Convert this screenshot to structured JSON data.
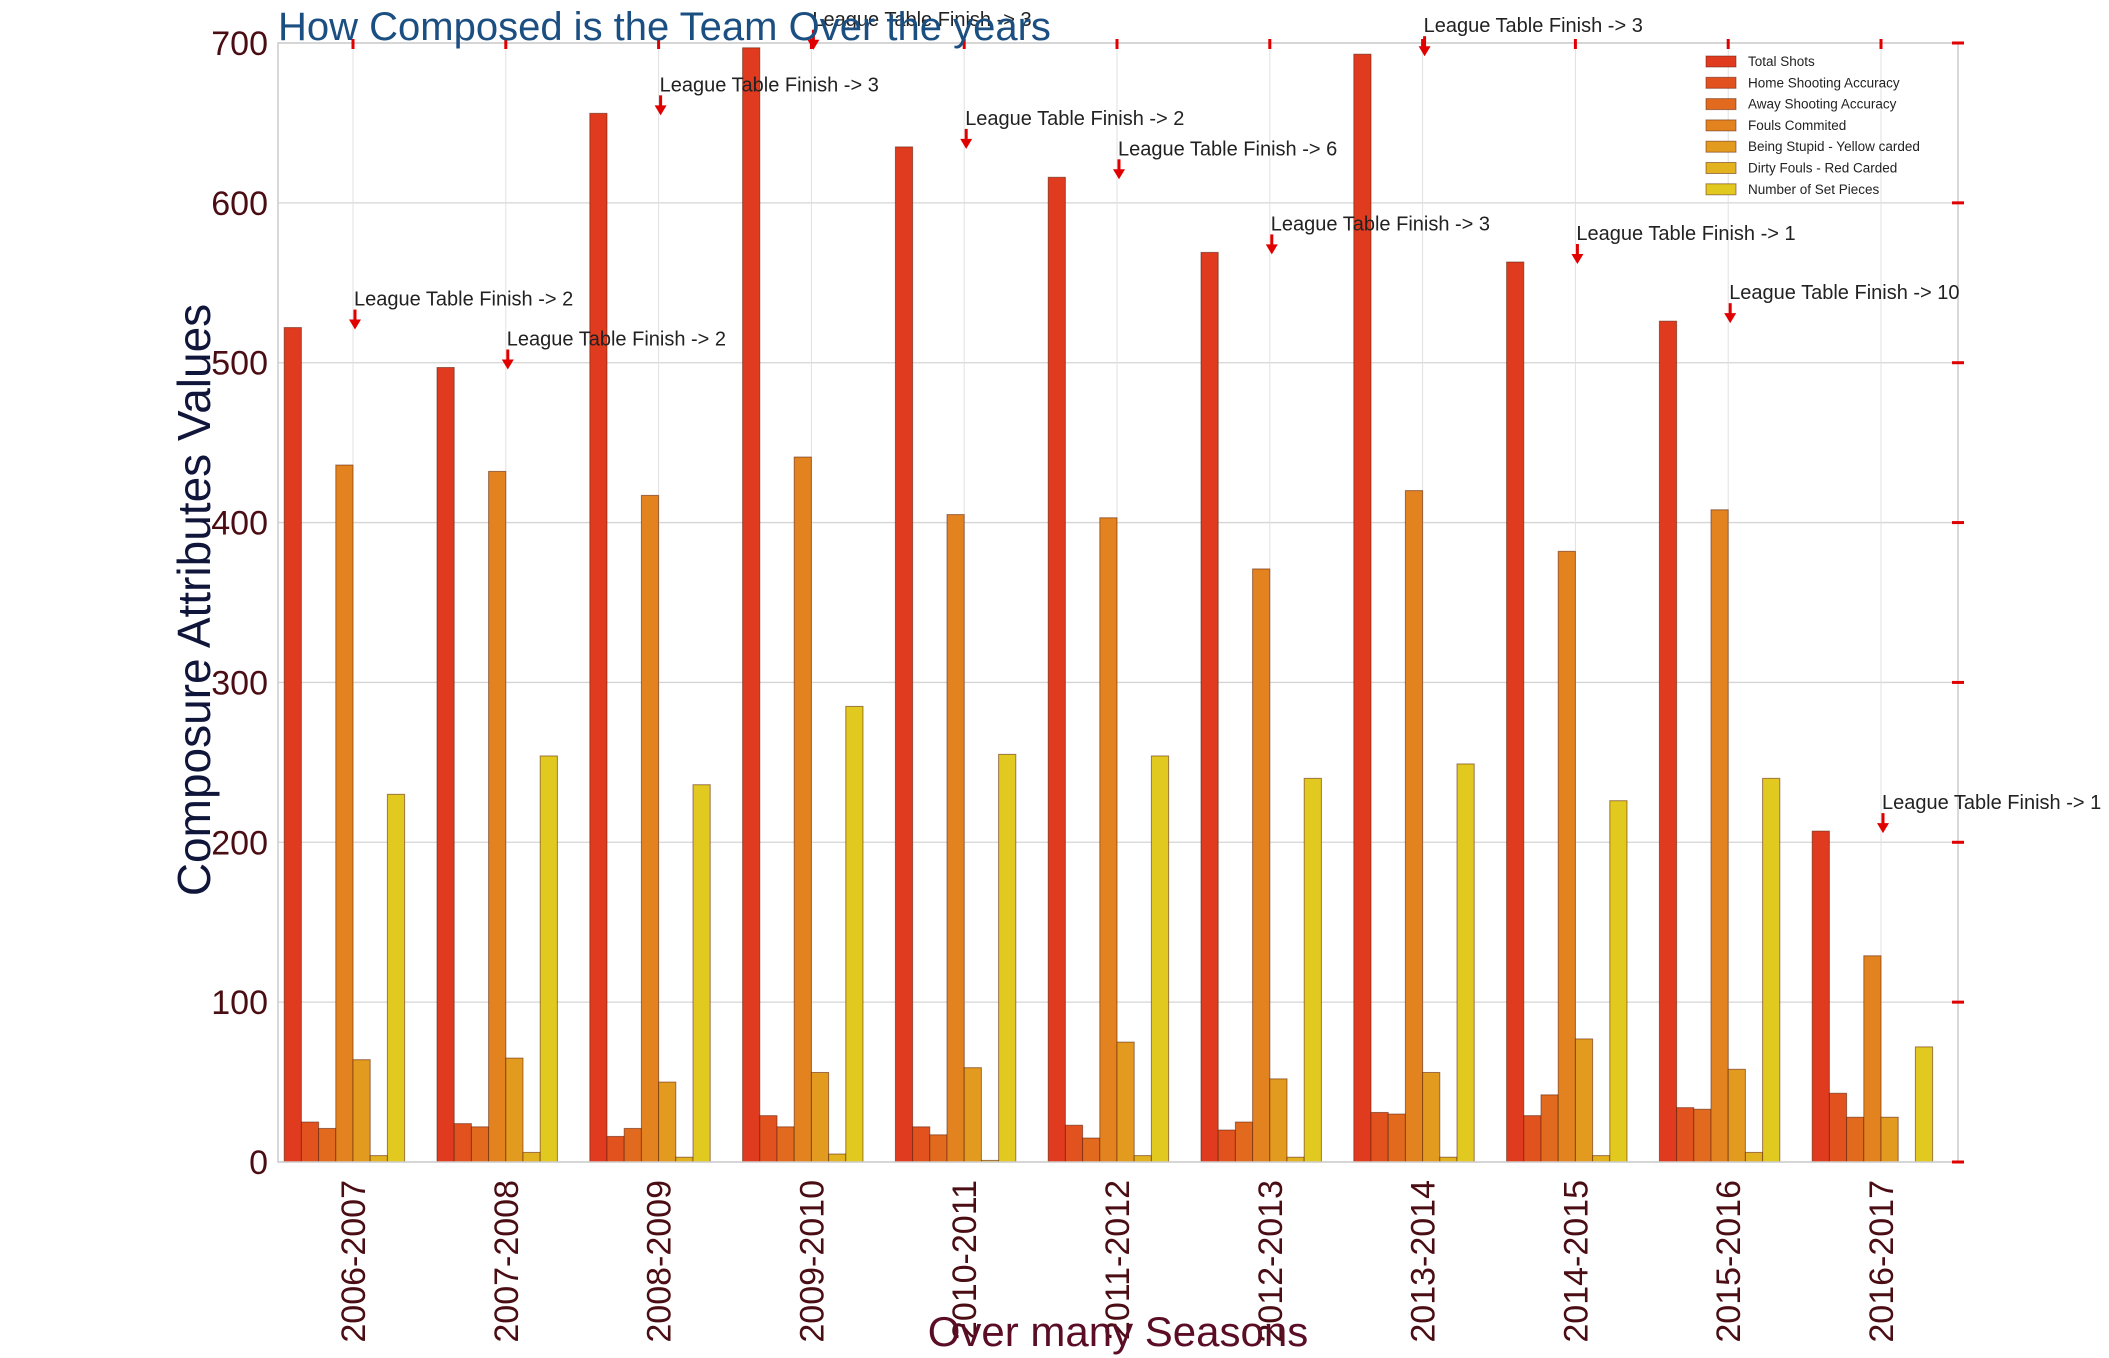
{
  "chart_data": {
    "type": "bar",
    "title": "How Composed is the Team Over the years",
    "xlabel": "Over many Seasons",
    "ylabel": "Composure Attributes Values",
    "ylim": [
      0,
      700
    ],
    "yticks": [
      "0",
      "100",
      "200",
      "300",
      "400",
      "500",
      "600",
      "700"
    ],
    "grid": true,
    "legend_position": "top-right",
    "categories": [
      "2006-2007",
      "2007-2008",
      "2008-2009",
      "2009-2010",
      "2010-2011",
      "2011-2012",
      "2012-2013",
      "2013-2014",
      "2014-2015",
      "2015-2016",
      "2016-2017"
    ],
    "series": [
      {
        "name": "Total Shots",
        "color": "#e03a1f",
        "values": [
          522,
          497,
          656,
          697,
          635,
          616,
          569,
          693,
          563,
          526,
          207
        ]
      },
      {
        "name": "Home Shooting Accuracy",
        "color": "#e2521f",
        "values": [
          25,
          24,
          16,
          29,
          22,
          23,
          20,
          31,
          29,
          34,
          43
        ]
      },
      {
        "name": "Away Shooting Accuracy",
        "color": "#e26a1f",
        "values": [
          21,
          22,
          21,
          22,
          17,
          15,
          25,
          30,
          42,
          33,
          28
        ]
      },
      {
        "name": "Fouls Commited",
        "color": "#e2831f",
        "values": [
          436,
          432,
          417,
          441,
          405,
          403,
          371,
          420,
          382,
          408,
          129
        ]
      },
      {
        "name": "Being Stupid - Yellow carded",
        "color": "#e29a1f",
        "values": [
          64,
          65,
          50,
          56,
          59,
          75,
          52,
          56,
          77,
          58,
          28
        ]
      },
      {
        "name": "Dirty Fouls - Red Carded",
        "color": "#e2b21f",
        "values": [
          4,
          6,
          3,
          5,
          1,
          4,
          3,
          3,
          4,
          6,
          0
        ]
      },
      {
        "name": "Number of Set Pieces",
        "color": "#e2c920",
        "values": [
          230,
          254,
          236,
          285,
          255,
          254,
          240,
          249,
          226,
          240,
          72
        ]
      }
    ],
    "annotations": [
      {
        "season": "2006-2007",
        "text": "League Table Finish ->  2",
        "y": 532
      },
      {
        "season": "2007-2008",
        "text": "League Table Finish ->  2",
        "y": 507
      },
      {
        "season": "2008-2009",
        "text": "League Table Finish ->  3",
        "y": 666
      },
      {
        "season": "2009-2010",
        "text": "League Table Finish ->  3",
        "y": 707
      },
      {
        "season": "2010-2011",
        "text": "League Table Finish ->  2",
        "y": 645
      },
      {
        "season": "2011-2012",
        "text": "League Table Finish ->  6",
        "y": 626
      },
      {
        "season": "2012-2013",
        "text": "League Table Finish ->  3",
        "y": 579
      },
      {
        "season": "2013-2014",
        "text": "League Table Finish ->  3",
        "y": 703
      },
      {
        "season": "2014-2015",
        "text": "League Table Finish ->  1",
        "y": 573
      },
      {
        "season": "2015-2016",
        "text": "League Table Finish ->  10",
        "y": 536
      },
      {
        "season": "2016-2017",
        "text": "League Table Finish ->  1",
        "y": 217
      }
    ],
    "annotation_arrow_color": "#e00000"
  }
}
